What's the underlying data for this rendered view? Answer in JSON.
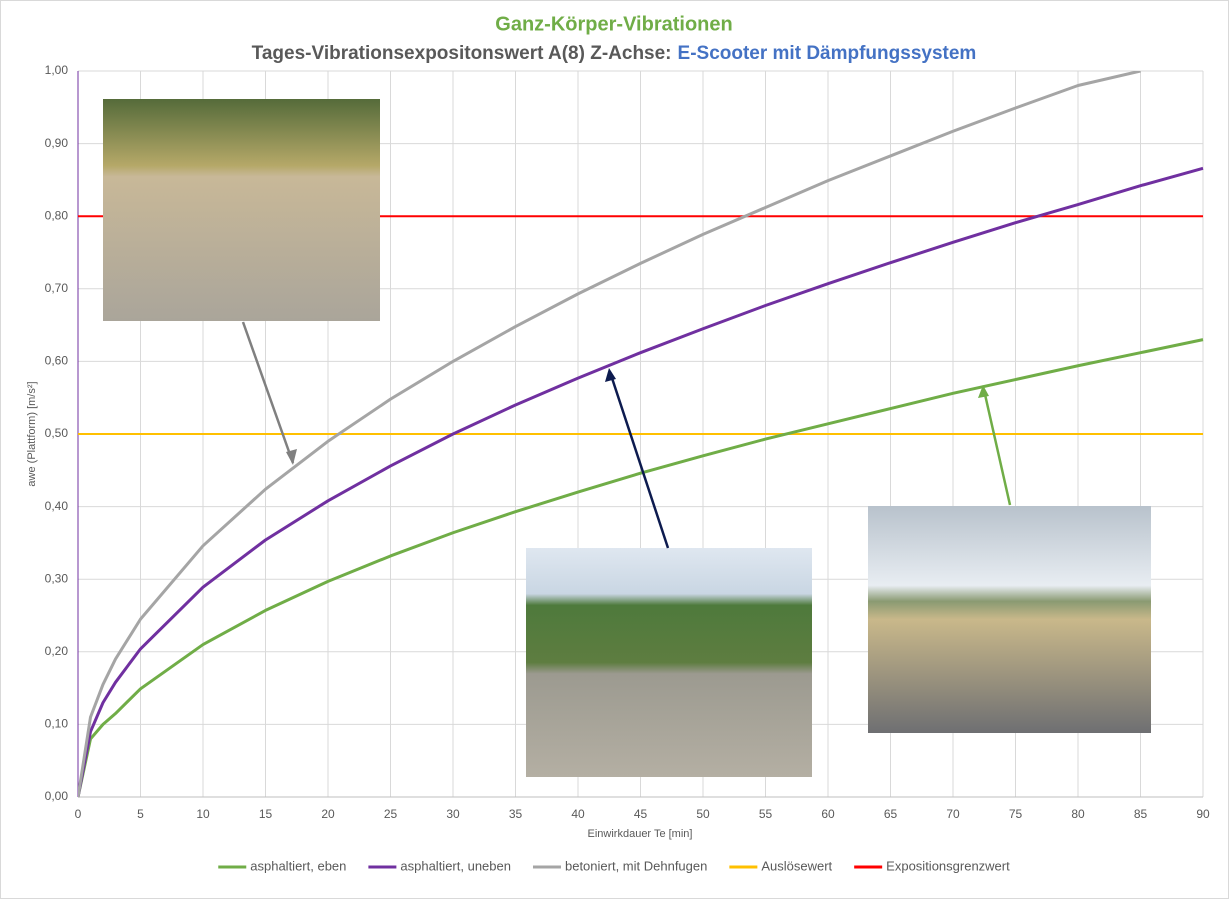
{
  "chart_data": {
    "type": "line",
    "title": "Ganz-Körper-Vibrationen",
    "subtitle": "Tages-Vibrationsexpositonswert A(8)   Z-Achse:",
    "subtitle_highlight": "E-Scooter mit Dämpfungssystem",
    "x_label": "Einwirkdauer Te [min]",
    "y_label": "awe (Plattform) [m/s²]",
    "x": [
      0,
      1,
      2,
      3,
      5,
      10,
      15,
      20,
      25,
      30,
      35,
      40,
      45,
      50,
      55,
      60,
      65,
      70,
      75,
      80,
      85,
      90
    ],
    "series": [
      {
        "name": "asphaltiert, eben",
        "color": "#70ad47",
        "values": [
          0,
          0.08,
          0.1,
          0.115,
          0.149,
          0.21,
          0.257,
          0.297,
          0.332,
          0.364,
          0.393,
          0.42,
          0.446,
          0.47,
          0.493,
          0.514,
          0.535,
          0.556,
          0.575,
          0.594,
          0.612,
          0.63
        ]
      },
      {
        "name": "asphaltiert, uneben",
        "color": "#7030a0",
        "values": [
          0,
          0.09,
          0.13,
          0.158,
          0.204,
          0.289,
          0.354,
          0.408,
          0.456,
          0.5,
          0.54,
          0.577,
          0.612,
          0.645,
          0.677,
          0.707,
          0.736,
          0.764,
          0.791,
          0.816,
          0.842,
          0.866
        ]
      },
      {
        "name": "betoniert, mit Dehnfugen",
        "color": "#a5a5a5",
        "values": [
          0,
          0.11,
          0.155,
          0.19,
          0.245,
          0.346,
          0.424,
          0.49,
          0.548,
          0.6,
          0.648,
          0.693,
          0.735,
          0.775,
          0.812,
          0.849,
          0.883,
          0.917,
          0.949,
          0.98,
          1.0,
          null
        ]
      }
    ],
    "thresholds": [
      {
        "name": "Auslösewert",
        "color": "#ffc000",
        "value": 0.5
      },
      {
        "name": "Expositionsgrenzwert",
        "color": "#ff0000",
        "value": 0.8
      }
    ],
    "xlim": [
      0,
      90
    ],
    "ylim": [
      0,
      1
    ],
    "xticks": [
      0,
      5,
      10,
      15,
      20,
      25,
      30,
      35,
      40,
      45,
      50,
      55,
      60,
      65,
      70,
      75,
      80,
      85,
      90
    ],
    "yticks": [
      {
        "value": 0,
        "label": "0,00"
      },
      {
        "value": 0.1,
        "label": "0,10"
      },
      {
        "value": 0.2,
        "label": "0,20"
      },
      {
        "value": 0.3,
        "label": "0,30"
      },
      {
        "value": 0.4,
        "label": "0,40"
      },
      {
        "value": 0.5,
        "label": "0,50"
      },
      {
        "value": 0.6,
        "label": "0,60"
      },
      {
        "value": 0.7,
        "label": "0,70"
      },
      {
        "value": 0.8,
        "label": "0,80"
      },
      {
        "value": 0.9,
        "label": "0,90"
      },
      {
        "value": 1,
        "label": "1,00"
      }
    ],
    "grid": true
  }
}
